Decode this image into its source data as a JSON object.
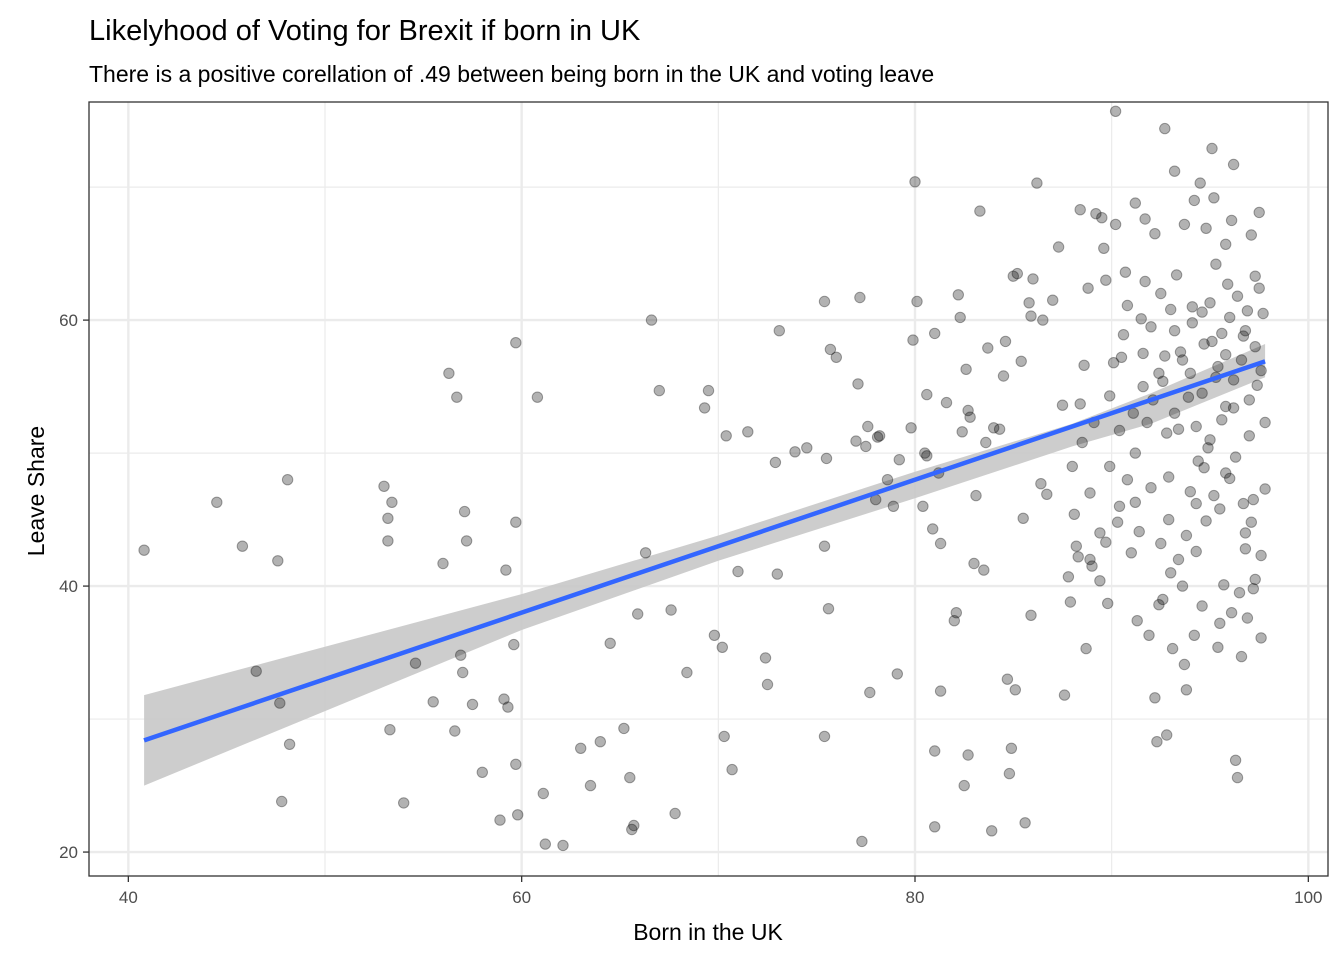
{
  "chart_data": {
    "type": "scatter",
    "title": "Likelyhood of Voting for Brexit if born in UK",
    "subtitle": "There is a positive corellation of .49 between being born in the UK and voting leave",
    "xlabel": "Born in the UK",
    "ylabel": "Leave Share",
    "xlim": [
      38,
      101
    ],
    "ylim": [
      18.2,
      76.4
    ],
    "x_ticks": [
      40,
      60,
      80,
      100
    ],
    "y_ticks": [
      20,
      40,
      60
    ],
    "grid": true,
    "theme": "bw",
    "point_color": "#000000",
    "point_alpha": 0.3,
    "fit_color": "#3366FF",
    "ribbon_color": "#c8c8c8",
    "fit_line": {
      "x": [
        40.8,
        97.8
      ],
      "y": [
        28.4,
        56.9
      ]
    },
    "confidence_band": {
      "x": [
        40.8,
        60,
        70,
        80,
        88,
        92,
        97.8
      ],
      "lower": [
        25.0,
        36.7,
        41.9,
        46.6,
        50.5,
        52.2,
        55.7
      ],
      "upper": [
        31.8,
        39.4,
        43.8,
        48.6,
        52.2,
        54.5,
        58.2
      ]
    },
    "points": [
      [
        40.8,
        42.7
      ],
      [
        44.5,
        46.3
      ],
      [
        45.8,
        43.0
      ],
      [
        46.5,
        33.6
      ],
      [
        47.6,
        41.9
      ],
      [
        47.7,
        31.2
      ],
      [
        47.8,
        23.8
      ],
      [
        48.1,
        48.0
      ],
      [
        48.2,
        28.1
      ],
      [
        53.0,
        47.5
      ],
      [
        53.2,
        45.1
      ],
      [
        53.2,
        43.4
      ],
      [
        53.3,
        29.2
      ],
      [
        53.4,
        46.3
      ],
      [
        54.0,
        23.7
      ],
      [
        54.6,
        34.2
      ],
      [
        55.5,
        31.3
      ],
      [
        56.0,
        41.7
      ],
      [
        56.3,
        56.0
      ],
      [
        56.6,
        29.1
      ],
      [
        56.7,
        54.2
      ],
      [
        56.9,
        34.8
      ],
      [
        57.0,
        33.5
      ],
      [
        57.1,
        45.6
      ],
      [
        57.2,
        43.4
      ],
      [
        57.5,
        31.1
      ],
      [
        58.0,
        26.0
      ],
      [
        58.9,
        22.4
      ],
      [
        59.1,
        31.5
      ],
      [
        59.2,
        41.2
      ],
      [
        59.3,
        30.9
      ],
      [
        59.6,
        35.6
      ],
      [
        59.7,
        44.8
      ],
      [
        59.7,
        58.3
      ],
      [
        59.7,
        26.6
      ],
      [
        59.8,
        22.8
      ],
      [
        60.8,
        54.2
      ],
      [
        61.1,
        24.4
      ],
      [
        61.2,
        20.6
      ],
      [
        62.1,
        20.5
      ],
      [
        63.0,
        27.8
      ],
      [
        63.5,
        25.0
      ],
      [
        64.0,
        28.3
      ],
      [
        64.5,
        35.7
      ],
      [
        65.2,
        29.3
      ],
      [
        65.5,
        25.6
      ],
      [
        65.6,
        21.7
      ],
      [
        65.7,
        22.0
      ],
      [
        65.9,
        37.9
      ],
      [
        66.3,
        42.5
      ],
      [
        66.6,
        60.0
      ],
      [
        67.0,
        54.7
      ],
      [
        67.6,
        38.2
      ],
      [
        67.8,
        22.9
      ],
      [
        68.4,
        33.5
      ],
      [
        69.3,
        53.4
      ],
      [
        69.5,
        54.7
      ],
      [
        69.8,
        36.3
      ],
      [
        70.2,
        35.4
      ],
      [
        70.3,
        28.7
      ],
      [
        70.4,
        51.3
      ],
      [
        70.7,
        26.2
      ],
      [
        71.0,
        41.1
      ],
      [
        71.5,
        51.6
      ],
      [
        72.4,
        34.6
      ],
      [
        72.5,
        32.6
      ],
      [
        72.9,
        49.3
      ],
      [
        73.0,
        40.9
      ],
      [
        73.1,
        59.2
      ],
      [
        73.9,
        50.1
      ],
      [
        74.5,
        50.4
      ],
      [
        75.4,
        28.7
      ],
      [
        75.4,
        43.0
      ],
      [
        75.5,
        49.6
      ],
      [
        75.6,
        38.3
      ],
      [
        75.7,
        57.8
      ],
      [
        75.4,
        61.4
      ],
      [
        76.0,
        57.2
      ],
      [
        77.0,
        50.9
      ],
      [
        77.1,
        55.2
      ],
      [
        77.2,
        61.7
      ],
      [
        77.3,
        20.8
      ],
      [
        77.5,
        50.5
      ],
      [
        77.6,
        52.0
      ],
      [
        77.7,
        32.0
      ],
      [
        78.0,
        46.5
      ],
      [
        78.1,
        51.2
      ],
      [
        78.2,
        51.3
      ],
      [
        78.6,
        48.0
      ],
      [
        78.9,
        46.0
      ],
      [
        79.1,
        33.4
      ],
      [
        79.2,
        49.5
      ],
      [
        79.8,
        51.9
      ],
      [
        79.9,
        58.5
      ],
      [
        80.0,
        70.4
      ],
      [
        80.1,
        61.4
      ],
      [
        80.4,
        46.0
      ],
      [
        80.5,
        50.0
      ],
      [
        80.6,
        54.4
      ],
      [
        80.6,
        49.8
      ],
      [
        80.9,
        44.3
      ],
      [
        81.0,
        27.6
      ],
      [
        81.0,
        21.9
      ],
      [
        81.0,
        59.0
      ],
      [
        81.2,
        48.5
      ],
      [
        81.3,
        43.2
      ],
      [
        81.3,
        32.1
      ],
      [
        81.6,
        53.8
      ],
      [
        82.0,
        37.4
      ],
      [
        82.1,
        38.0
      ],
      [
        82.2,
        61.9
      ],
      [
        82.3,
        60.2
      ],
      [
        82.4,
        51.6
      ],
      [
        82.5,
        25.0
      ],
      [
        82.6,
        56.3
      ],
      [
        82.7,
        27.3
      ],
      [
        82.7,
        53.2
      ],
      [
        82.8,
        52.7
      ],
      [
        83.0,
        41.7
      ],
      [
        83.1,
        46.8
      ],
      [
        83.3,
        68.2
      ],
      [
        83.5,
        41.2
      ],
      [
        83.6,
        50.8
      ],
      [
        83.7,
        57.9
      ],
      [
        83.9,
        21.6
      ],
      [
        84.0,
        51.9
      ],
      [
        84.3,
        51.8
      ],
      [
        84.5,
        55.8
      ],
      [
        84.6,
        58.4
      ],
      [
        84.7,
        33.0
      ],
      [
        84.8,
        25.9
      ],
      [
        84.9,
        27.8
      ],
      [
        85.0,
        63.3
      ],
      [
        85.1,
        32.2
      ],
      [
        85.2,
        63.5
      ],
      [
        85.4,
        56.9
      ],
      [
        85.5,
        45.1
      ],
      [
        85.6,
        22.2
      ],
      [
        85.8,
        61.3
      ],
      [
        85.9,
        37.8
      ],
      [
        85.9,
        60.3
      ],
      [
        86.0,
        63.1
      ],
      [
        86.2,
        70.3
      ],
      [
        86.4,
        47.7
      ],
      [
        86.5,
        60.0
      ],
      [
        86.7,
        46.9
      ],
      [
        87.0,
        61.5
      ],
      [
        87.3,
        65.5
      ],
      [
        87.5,
        53.6
      ],
      [
        87.6,
        31.8
      ],
      [
        87.8,
        40.7
      ],
      [
        87.9,
        38.8
      ],
      [
        88.0,
        49.0
      ],
      [
        88.1,
        45.4
      ],
      [
        88.2,
        43.0
      ],
      [
        88.3,
        42.2
      ],
      [
        88.4,
        53.7
      ],
      [
        88.5,
        50.8
      ],
      [
        88.6,
        56.6
      ],
      [
        88.7,
        35.3
      ],
      [
        88.9,
        47.0
      ],
      [
        89.0,
        41.5
      ],
      [
        89.1,
        52.3
      ],
      [
        89.4,
        40.4
      ],
      [
        89.5,
        67.7
      ],
      [
        89.6,
        65.4
      ],
      [
        89.7,
        43.3
      ],
      [
        89.8,
        38.7
      ],
      [
        89.9,
        54.3
      ],
      [
        90.1,
        56.8
      ],
      [
        90.2,
        75.7
      ],
      [
        90.3,
        44.8
      ],
      [
        90.4,
        51.7
      ],
      [
        90.5,
        57.2
      ],
      [
        90.6,
        58.9
      ],
      [
        90.8,
        61.1
      ],
      [
        91.0,
        42.5
      ],
      [
        91.1,
        53.0
      ],
      [
        91.2,
        46.3
      ],
      [
        91.3,
        37.4
      ],
      [
        91.4,
        44.1
      ],
      [
        91.5,
        60.1
      ],
      [
        91.6,
        57.5
      ],
      [
        91.7,
        62.9
      ],
      [
        91.8,
        52.3
      ],
      [
        91.9,
        36.3
      ],
      [
        92.0,
        47.4
      ],
      [
        92.1,
        54.0
      ],
      [
        92.2,
        31.6
      ],
      [
        92.3,
        28.3
      ],
      [
        92.4,
        38.6
      ],
      [
        92.5,
        43.2
      ],
      [
        92.6,
        55.4
      ],
      [
        92.7,
        57.3
      ],
      [
        92.8,
        28.8
      ],
      [
        92.9,
        48.2
      ],
      [
        93.0,
        41.0
      ],
      [
        93.1,
        35.3
      ],
      [
        93.2,
        59.2
      ],
      [
        93.3,
        63.4
      ],
      [
        93.4,
        51.8
      ],
      [
        93.5,
        57.6
      ],
      [
        93.6,
        40.0
      ],
      [
        93.7,
        34.1
      ],
      [
        93.8,
        32.2
      ],
      [
        93.9,
        54.2
      ],
      [
        94.0,
        47.1
      ],
      [
        94.1,
        61.0
      ],
      [
        94.2,
        36.3
      ],
      [
        94.3,
        42.6
      ],
      [
        94.4,
        49.4
      ],
      [
        94.5,
        70.3
      ],
      [
        94.6,
        38.5
      ],
      [
        94.7,
        58.2
      ],
      [
        94.8,
        44.9
      ],
      [
        94.9,
        50.4
      ],
      [
        95.0,
        61.3
      ],
      [
        95.1,
        72.9
      ],
      [
        95.2,
        69.2
      ],
      [
        95.3,
        55.7
      ],
      [
        95.4,
        35.4
      ],
      [
        95.5,
        45.8
      ],
      [
        95.6,
        52.5
      ],
      [
        95.7,
        40.1
      ],
      [
        95.8,
        57.4
      ],
      [
        95.9,
        62.7
      ],
      [
        96.0,
        48.1
      ],
      [
        96.1,
        67.5
      ],
      [
        96.2,
        53.4
      ],
      [
        96.3,
        26.9
      ],
      [
        96.4,
        25.6
      ],
      [
        96.5,
        39.5
      ],
      [
        96.6,
        34.7
      ],
      [
        96.7,
        58.8
      ],
      [
        96.8,
        44.0
      ],
      [
        96.9,
        60.7
      ],
      [
        97.0,
        51.3
      ],
      [
        97.1,
        66.4
      ],
      [
        97.2,
        46.5
      ],
      [
        97.3,
        63.3
      ],
      [
        97.4,
        55.1
      ],
      [
        97.5,
        68.1
      ],
      [
        97.6,
        42.3
      ],
      [
        97.7,
        60.5
      ],
      [
        97.8,
        47.3
      ],
      [
        97.8,
        52.3
      ],
      [
        97.5,
        62.4
      ],
      [
        97.6,
        36.1
      ],
      [
        97.2,
        39.8
      ],
      [
        96.9,
        37.6
      ],
      [
        96.2,
        71.7
      ],
      [
        95.8,
        65.7
      ],
      [
        95.3,
        64.2
      ],
      [
        94.8,
        66.9
      ],
      [
        94.2,
        69.0
      ],
      [
        93.7,
        67.2
      ],
      [
        93.2,
        71.2
      ],
      [
        92.7,
        74.4
      ],
      [
        92.2,
        66.5
      ],
      [
        91.7,
        67.6
      ],
      [
        91.2,
        68.8
      ],
      [
        90.7,
        63.6
      ],
      [
        90.2,
        67.2
      ],
      [
        89.7,
        63.0
      ],
      [
        89.2,
        68.0
      ],
      [
        88.8,
        62.4
      ],
      [
        88.4,
        68.3
      ],
      [
        94.0,
        56.0
      ],
      [
        94.3,
        52.0
      ],
      [
        94.6,
        54.5
      ],
      [
        95.0,
        51.0
      ],
      [
        95.4,
        56.5
      ],
      [
        95.8,
        53.5
      ],
      [
        96.2,
        55.5
      ],
      [
        96.6,
        57.0
      ],
      [
        97.0,
        54.0
      ],
      [
        93.6,
        57.0
      ],
      [
        93.2,
        53.0
      ],
      [
        92.8,
        51.5
      ],
      [
        92.4,
        56.0
      ],
      [
        92.0,
        59.5
      ],
      [
        91.6,
        55.0
      ],
      [
        91.2,
        50.0
      ],
      [
        90.8,
        48.0
      ],
      [
        90.4,
        46.0
      ],
      [
        89.9,
        49.0
      ],
      [
        89.4,
        44.0
      ],
      [
        88.9,
        42.0
      ],
      [
        96.0,
        60.2
      ],
      [
        96.4,
        61.8
      ],
      [
        96.8,
        59.2
      ],
      [
        97.3,
        58.0
      ],
      [
        97.6,
        56.2
      ],
      [
        95.6,
        59.0
      ],
      [
        95.1,
        58.4
      ],
      [
        94.6,
        60.6
      ],
      [
        94.1,
        59.8
      ],
      [
        93.0,
        60.8
      ],
      [
        92.5,
        62.0
      ],
      [
        95.8,
        48.5
      ],
      [
        96.3,
        49.7
      ],
      [
        96.7,
        46.2
      ],
      [
        97.1,
        44.8
      ],
      [
        95.2,
        46.8
      ],
      [
        94.7,
        48.9
      ],
      [
        94.3,
        46.2
      ],
      [
        93.8,
        43.8
      ],
      [
        93.4,
        42.0
      ],
      [
        92.9,
        45.0
      ],
      [
        92.6,
        39.0
      ],
      [
        96.8,
        42.8
      ],
      [
        97.3,
        40.5
      ],
      [
        96.1,
        38.0
      ],
      [
        95.5,
        37.2
      ]
    ]
  }
}
